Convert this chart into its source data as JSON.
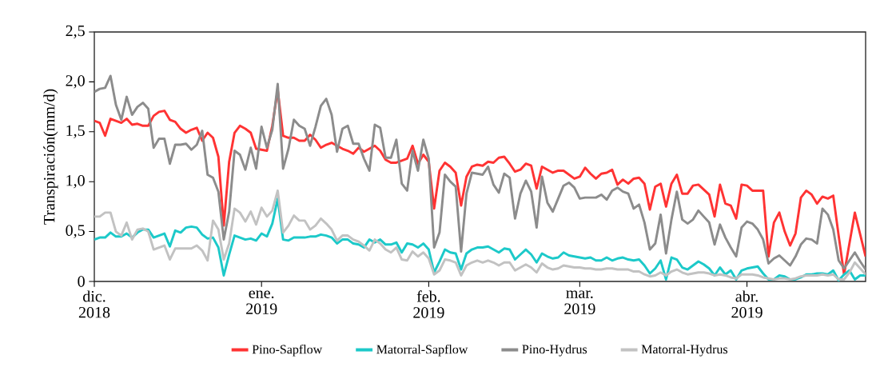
{
  "chart_data": {
    "type": "line",
    "ylabel": "Transpiración(mm/d)",
    "x": [
      "2018-12-01",
      "2018-12-02",
      "2018-12-03",
      "2018-12-04",
      "2018-12-05",
      "2018-12-06",
      "2018-12-07",
      "2018-12-08",
      "2018-12-09",
      "2018-12-10",
      "2018-12-11",
      "2018-12-12",
      "2018-12-13",
      "2018-12-14",
      "2018-12-15",
      "2018-12-16",
      "2018-12-17",
      "2018-12-18",
      "2018-12-19",
      "2018-12-20",
      "2018-12-21",
      "2018-12-22",
      "2018-12-23",
      "2018-12-24",
      "2018-12-25",
      "2018-12-26",
      "2018-12-27",
      "2018-12-28",
      "2018-12-29",
      "2018-12-30",
      "2018-12-31",
      "2019-01-01",
      "2019-01-02",
      "2019-01-03",
      "2019-01-04",
      "2019-01-05",
      "2019-01-06",
      "2019-01-07",
      "2019-01-08",
      "2019-01-09",
      "2019-01-10",
      "2019-01-11",
      "2019-01-12",
      "2019-01-13",
      "2019-01-14",
      "2019-01-15",
      "2019-01-16",
      "2019-01-17",
      "2019-01-18",
      "2019-01-19",
      "2019-01-20",
      "2019-01-21",
      "2019-01-22",
      "2019-01-23",
      "2019-01-24",
      "2019-01-25",
      "2019-01-26",
      "2019-01-27",
      "2019-01-28",
      "2019-01-29",
      "2019-01-30",
      "2019-01-31",
      "2019-02-01",
      "2019-02-02",
      "2019-02-03",
      "2019-02-04",
      "2019-02-05",
      "2019-02-06",
      "2019-02-07",
      "2019-02-08",
      "2019-02-09",
      "2019-02-10",
      "2019-02-11",
      "2019-02-12",
      "2019-02-13",
      "2019-02-14",
      "2019-02-15",
      "2019-02-16",
      "2019-02-17",
      "2019-02-18",
      "2019-02-19",
      "2019-02-20",
      "2019-02-21",
      "2019-02-22",
      "2019-02-23",
      "2019-02-24",
      "2019-02-25",
      "2019-02-26",
      "2019-02-27",
      "2019-02-28",
      "2019-03-01",
      "2019-03-02",
      "2019-03-03",
      "2019-03-04",
      "2019-03-05",
      "2019-03-06",
      "2019-03-07",
      "2019-03-08",
      "2019-03-09",
      "2019-03-10",
      "2019-03-11",
      "2019-03-12",
      "2019-03-13",
      "2019-03-14",
      "2019-03-15",
      "2019-03-16",
      "2019-03-17",
      "2019-03-18",
      "2019-03-19",
      "2019-03-20",
      "2019-03-21",
      "2019-03-22",
      "2019-03-23",
      "2019-03-24",
      "2019-03-25",
      "2019-03-26",
      "2019-03-27",
      "2019-03-28",
      "2019-03-29",
      "2019-03-30",
      "2019-03-31",
      "2019-04-01",
      "2019-04-02",
      "2019-04-03",
      "2019-04-04",
      "2019-04-05",
      "2019-04-06",
      "2019-04-07",
      "2019-04-08",
      "2019-04-09",
      "2019-04-10",
      "2019-04-11",
      "2019-04-12",
      "2019-04-13",
      "2019-04-14",
      "2019-04-15",
      "2019-04-16",
      "2019-04-17",
      "2019-04-18",
      "2019-04-19",
      "2019-04-20",
      "2019-04-21",
      "2019-04-22",
      "2019-04-23"
    ],
    "series": [
      {
        "name": "Pino-Sapflow",
        "color": "#ff3333",
        "values": [
          1.61,
          1.59,
          1.46,
          1.63,
          1.61,
          1.59,
          1.63,
          1.57,
          1.58,
          1.56,
          1.56,
          1.66,
          1.7,
          1.71,
          1.62,
          1.6,
          1.53,
          1.49,
          1.52,
          1.54,
          1.41,
          1.49,
          1.44,
          1.25,
          0.56,
          1.2,
          1.49,
          1.56,
          1.53,
          1.49,
          1.33,
          1.32,
          1.31,
          1.56,
          1.92,
          1.46,
          1.44,
          1.44,
          1.41,
          1.41,
          1.47,
          1.42,
          1.34,
          1.37,
          1.39,
          1.36,
          1.33,
          1.31,
          1.28,
          1.34,
          1.3,
          1.33,
          1.36,
          1.31,
          1.22,
          1.19,
          1.19,
          1.21,
          1.23,
          1.36,
          1.18,
          1.27,
          1.2,
          0.73,
          1.11,
          1.19,
          1.15,
          1.09,
          0.76,
          1.05,
          1.15,
          1.17,
          1.16,
          1.2,
          1.19,
          1.24,
          1.25,
          1.18,
          1.1,
          1.12,
          1.18,
          1.16,
          0.93,
          1.15,
          1.12,
          1.09,
          1.11,
          1.11,
          1.07,
          1.03,
          1.05,
          1.14,
          1.08,
          1.03,
          1.08,
          1.09,
          1.12,
          0.97,
          1.02,
          0.98,
          1.03,
          1.04,
          0.98,
          0.72,
          0.95,
          0.98,
          0.75,
          0.98,
          1.07,
          0.88,
          0.88,
          0.96,
          0.97,
          0.92,
          0.87,
          0.65,
          0.97,
          0.78,
          0.76,
          0.63,
          0.97,
          0.96,
          0.91,
          0.91,
          0.91,
          0.25,
          0.59,
          0.69,
          0.5,
          0.36,
          0.48,
          0.84,
          0.91,
          0.87,
          0.78,
          0.85,
          0.83,
          0.86,
          0.46,
          0.07,
          0.38,
          0.69,
          0.47,
          0.25
        ]
      },
      {
        "name": "Matorral-Sapflow",
        "color": "#1cc9c9",
        "values": [
          0.42,
          0.44,
          0.44,
          0.49,
          0.45,
          0.45,
          0.48,
          0.44,
          0.49,
          0.52,
          0.52,
          0.44,
          0.46,
          0.48,
          0.35,
          0.51,
          0.49,
          0.54,
          0.55,
          0.54,
          0.47,
          0.43,
          0.44,
          0.34,
          0.06,
          0.27,
          0.46,
          0.44,
          0.42,
          0.43,
          0.41,
          0.48,
          0.45,
          0.58,
          0.83,
          0.42,
          0.41,
          0.44,
          0.44,
          0.44,
          0.45,
          0.45,
          0.47,
          0.46,
          0.44,
          0.38,
          0.42,
          0.42,
          0.38,
          0.37,
          0.34,
          0.42,
          0.39,
          0.42,
          0.37,
          0.37,
          0.39,
          0.29,
          0.38,
          0.37,
          0.34,
          0.38,
          0.32,
          0.09,
          0.2,
          0.32,
          0.29,
          0.28,
          0.12,
          0.28,
          0.32,
          0.34,
          0.34,
          0.35,
          0.32,
          0.29,
          0.33,
          0.32,
          0.22,
          0.27,
          0.32,
          0.27,
          0.19,
          0.28,
          0.25,
          0.23,
          0.24,
          0.29,
          0.26,
          0.25,
          0.24,
          0.23,
          0.24,
          0.21,
          0.21,
          0.24,
          0.21,
          0.23,
          0.24,
          0.22,
          0.21,
          0.22,
          0.16,
          0.08,
          0.13,
          0.21,
          0.02,
          0.24,
          0.22,
          0.14,
          0.12,
          0.16,
          0.2,
          0.17,
          0.13,
          0.06,
          0.14,
          0.07,
          0.11,
          0.02,
          0.11,
          0.13,
          0.14,
          0.15,
          0.08,
          0.02,
          0.02,
          0.06,
          0.05,
          0.02,
          0.02,
          0.04,
          0.07,
          0.07,
          0.08,
          0.08,
          0.07,
          0.11,
          0.01,
          0.07,
          0.11,
          0.02,
          0.06,
          0.06
        ]
      },
      {
        "name": "Pino-Hydrus",
        "color": "#8c8c8c",
        "values": [
          1.9,
          1.93,
          1.94,
          2.06,
          1.77,
          1.62,
          1.85,
          1.67,
          1.75,
          1.79,
          1.73,
          1.34,
          1.43,
          1.43,
          1.18,
          1.37,
          1.37,
          1.38,
          1.32,
          1.37,
          1.51,
          1.07,
          1.04,
          0.9,
          0.42,
          0.7,
          1.31,
          1.27,
          1.12,
          1.34,
          1.13,
          1.55,
          1.34,
          1.52,
          1.98,
          1.13,
          1.33,
          1.62,
          1.56,
          1.53,
          1.36,
          1.55,
          1.76,
          1.83,
          1.67,
          1.3,
          1.53,
          1.56,
          1.38,
          1.38,
          1.23,
          1.11,
          1.57,
          1.54,
          1.24,
          1.24,
          1.42,
          0.98,
          0.91,
          1.31,
          1.11,
          1.42,
          1.23,
          0.34,
          0.49,
          1.07,
          1.0,
          0.95,
          0.3,
          0.88,
          1.09,
          1.08,
          1.07,
          1.15,
          0.97,
          0.89,
          1.08,
          1.04,
          0.63,
          0.88,
          1.01,
          0.9,
          0.54,
          1.05,
          0.79,
          0.7,
          0.83,
          0.96,
          0.99,
          0.94,
          0.83,
          0.84,
          0.84,
          0.84,
          0.87,
          0.82,
          0.91,
          0.94,
          0.9,
          0.88,
          0.73,
          0.77,
          0.59,
          0.32,
          0.38,
          0.67,
          0.28,
          0.62,
          0.9,
          0.62,
          0.58,
          0.62,
          0.71,
          0.65,
          0.59,
          0.37,
          0.57,
          0.44,
          0.34,
          0.25,
          0.54,
          0.6,
          0.58,
          0.52,
          0.42,
          0.18,
          0.23,
          0.26,
          0.21,
          0.16,
          0.25,
          0.37,
          0.43,
          0.42,
          0.38,
          0.73,
          0.67,
          0.52,
          0.21,
          0.13,
          0.21,
          0.29,
          0.2,
          0.12
        ]
      },
      {
        "name": "Matorral-Hydrus",
        "color": "#c2c2c2",
        "values": [
          0.65,
          0.65,
          0.69,
          0.69,
          0.5,
          0.46,
          0.59,
          0.42,
          0.52,
          0.53,
          0.5,
          0.32,
          0.34,
          0.36,
          0.22,
          0.33,
          0.33,
          0.33,
          0.33,
          0.36,
          0.31,
          0.21,
          0.61,
          0.52,
          0.22,
          0.38,
          0.73,
          0.69,
          0.6,
          0.7,
          0.57,
          0.74,
          0.65,
          0.71,
          0.91,
          0.49,
          0.56,
          0.66,
          0.61,
          0.61,
          0.52,
          0.56,
          0.63,
          0.58,
          0.52,
          0.41,
          0.46,
          0.46,
          0.42,
          0.4,
          0.36,
          0.31,
          0.42,
          0.38,
          0.32,
          0.29,
          0.34,
          0.22,
          0.21,
          0.3,
          0.25,
          0.29,
          0.23,
          0.07,
          0.11,
          0.22,
          0.21,
          0.19,
          0.06,
          0.16,
          0.19,
          0.21,
          0.19,
          0.21,
          0.19,
          0.16,
          0.19,
          0.19,
          0.11,
          0.14,
          0.17,
          0.14,
          0.09,
          0.18,
          0.14,
          0.12,
          0.13,
          0.16,
          0.15,
          0.14,
          0.14,
          0.13,
          0.13,
          0.12,
          0.12,
          0.13,
          0.13,
          0.12,
          0.12,
          0.12,
          0.1,
          0.1,
          0.07,
          0.05,
          0.06,
          0.09,
          0.06,
          0.1,
          0.12,
          0.09,
          0.07,
          0.08,
          0.09,
          0.09,
          0.08,
          0.06,
          0.07,
          0.06,
          0.04,
          0.03,
          0.07,
          0.07,
          0.07,
          0.06,
          0.04,
          0.03,
          0.02,
          0.03,
          0.03,
          0.02,
          0.03,
          0.05,
          0.06,
          0.06,
          0.06,
          0.07,
          0.06,
          0.07,
          0.02,
          0.02,
          0.09,
          0.19,
          0.13,
          0.07
        ]
      }
    ],
    "xlim": [
      "2018-12-01",
      "2019-04-23"
    ],
    "xticks": [
      {
        "value": "2018-12-01",
        "label": "dic. 2018"
      },
      {
        "value": "2019-01-01",
        "label": "ene. 2019"
      },
      {
        "value": "2019-02-01",
        "label": "feb. 2019"
      },
      {
        "value": "2019-03-01",
        "label": "mar. 2019"
      },
      {
        "value": "2019-04-01",
        "label": "abr. 2019"
      }
    ],
    "ylim": [
      0,
      2.5
    ],
    "yticks": [
      0,
      {
        "value": 0.5,
        "label": "0,5"
      },
      {
        "value": 1.0,
        "label": "1,0"
      },
      {
        "value": 1.5,
        "label": "1,5"
      },
      {
        "value": 2.0,
        "label": "2,0"
      },
      {
        "value": 2.5,
        "label": "2,5"
      }
    ],
    "legend": "bottom",
    "grid": false,
    "marker": "none",
    "line_style": "solid"
  }
}
